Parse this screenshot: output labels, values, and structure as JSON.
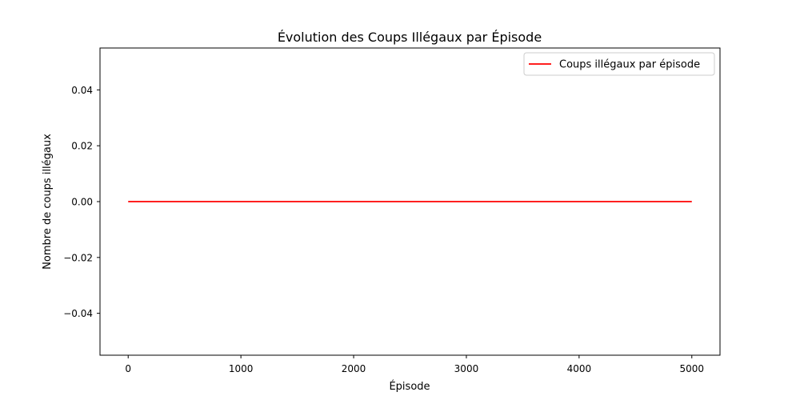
{
  "chart_data": {
    "type": "line",
    "title": "Évolution des Coups Illégaux par Épisode",
    "xlabel": "Épisode",
    "ylabel": "Nombre de coups illégaux",
    "xlim": [
      -250,
      5250
    ],
    "ylim": [
      -0.055,
      0.055
    ],
    "x_ticks": [
      0,
      1000,
      2000,
      3000,
      4000,
      5000
    ],
    "x_tick_labels": [
      "0",
      "1000",
      "2000",
      "3000",
      "4000",
      "5000"
    ],
    "y_ticks": [
      0.04,
      0.02,
      0.0,
      -0.02,
      -0.04
    ],
    "y_tick_labels": [
      "0.04",
      "0.02",
      "0.00",
      "−0.02",
      "−0.04"
    ],
    "grid": false,
    "legend_position": "top-right",
    "series": [
      {
        "name": "Coups illégaux par épisode",
        "color": "#ff0000",
        "x": [
          0,
          5000
        ],
        "y": [
          0,
          0
        ]
      }
    ]
  }
}
